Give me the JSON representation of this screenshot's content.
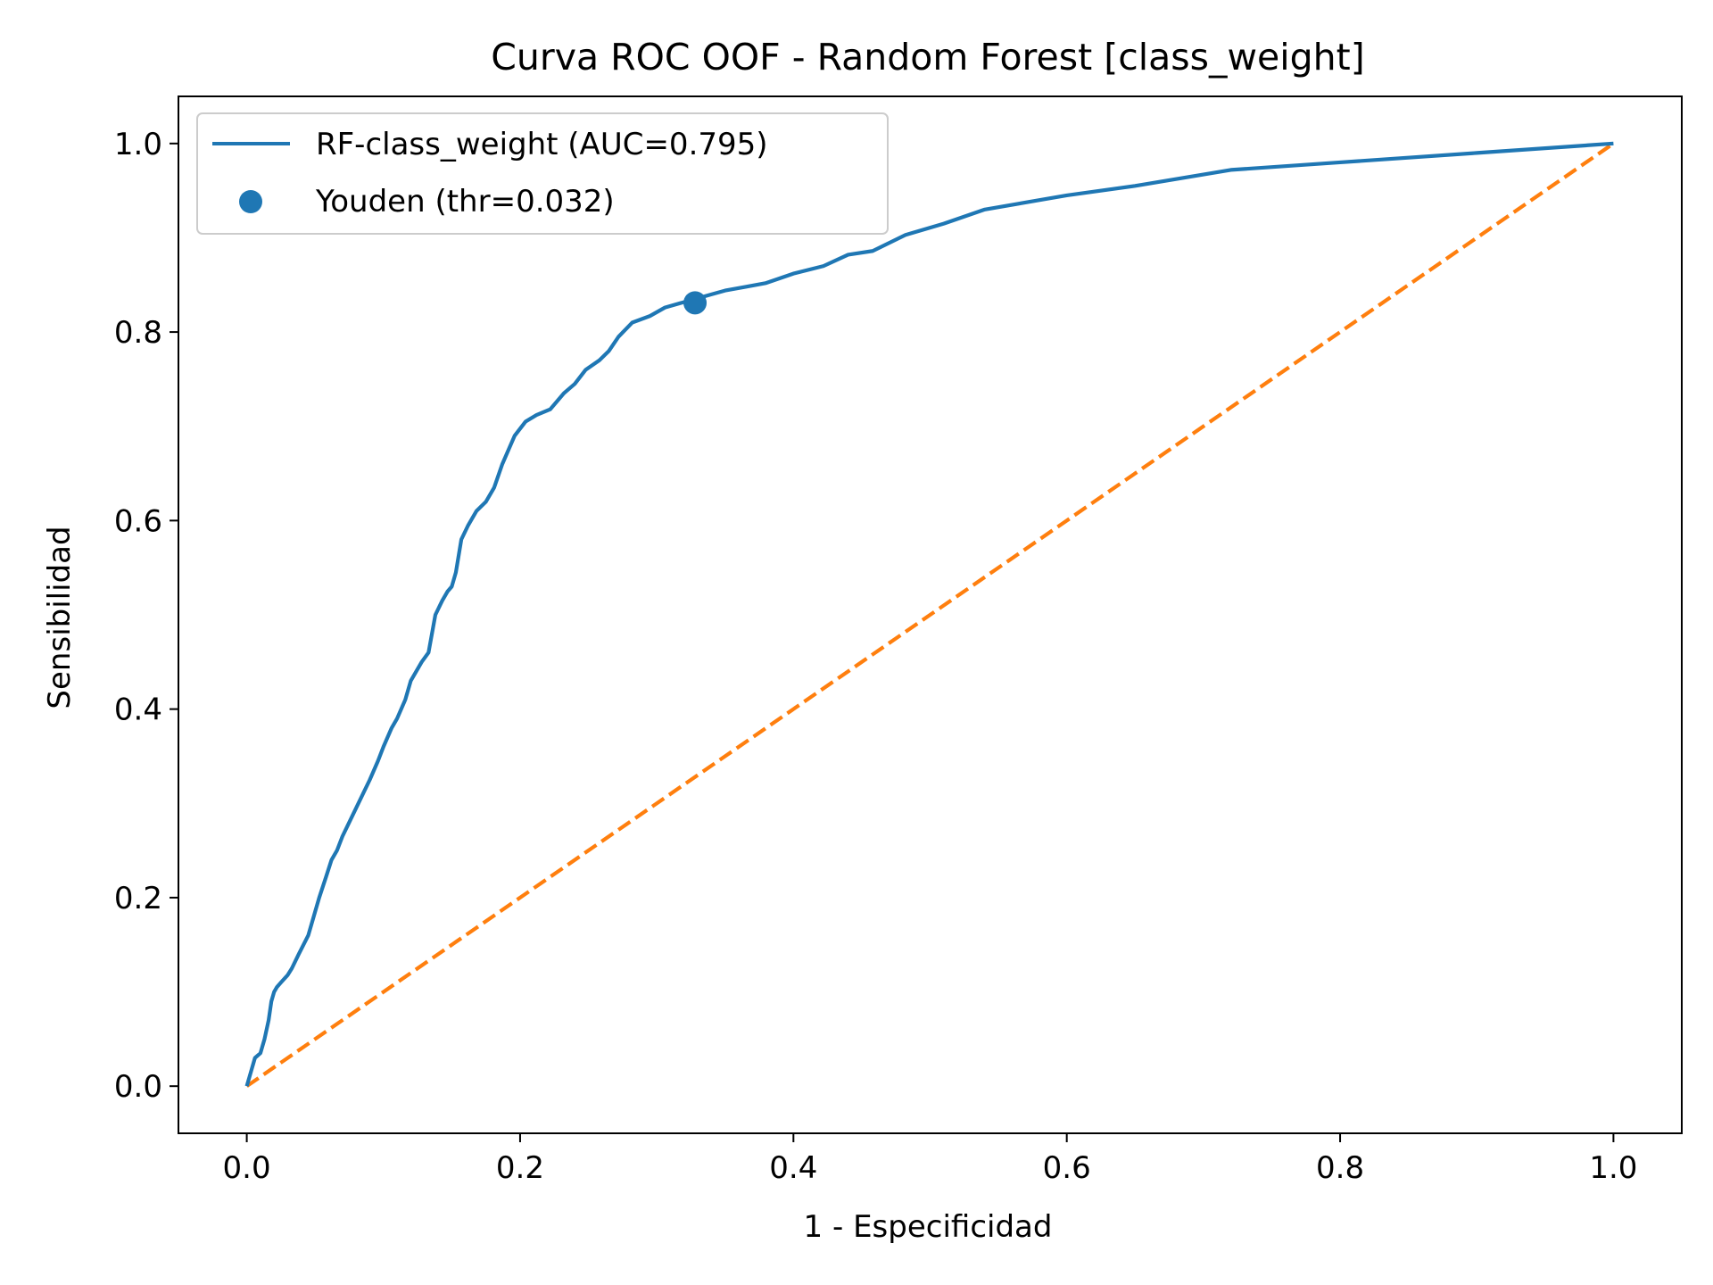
{
  "chart_data": {
    "type": "line",
    "title": "Curva ROC OOF - Random Forest [class_weight]",
    "xlabel": "1 - Especificidad",
    "ylabel": "Sensibilidad",
    "xlim": [
      -0.05,
      1.05
    ],
    "ylim": [
      -0.05,
      1.05
    ],
    "grid": false,
    "legend_position": "top-left",
    "x_ticks": [
      0.0,
      0.2,
      0.4,
      0.6,
      0.8,
      1.0
    ],
    "x_tick_labels": [
      "0.0",
      "0.2",
      "0.4",
      "0.6",
      "0.8",
      "1.0"
    ],
    "y_ticks": [
      0.0,
      0.2,
      0.4,
      0.6,
      0.8,
      1.0
    ],
    "y_tick_labels": [
      "0.0",
      "0.2",
      "0.4",
      "0.6",
      "0.8",
      "1.0"
    ],
    "series": [
      {
        "name": "RF-class_weight (AUC=0.795)",
        "kind": "line",
        "color": "#1f77b4",
        "x": [
          0.0,
          0.004,
          0.006,
          0.01,
          0.013,
          0.016,
          0.018,
          0.02,
          0.022,
          0.025,
          0.03,
          0.033,
          0.038,
          0.045,
          0.05,
          0.053,
          0.058,
          0.062,
          0.066,
          0.07,
          0.075,
          0.08,
          0.085,
          0.09,
          0.096,
          0.1,
          0.106,
          0.11,
          0.116,
          0.12,
          0.128,
          0.133,
          0.138,
          0.143,
          0.147,
          0.15,
          0.153,
          0.157,
          0.162,
          0.168,
          0.175,
          0.181,
          0.187,
          0.196,
          0.204,
          0.212,
          0.222,
          0.232,
          0.24,
          0.248,
          0.258,
          0.265,
          0.272,
          0.282,
          0.295,
          0.306,
          0.318,
          0.328,
          0.34,
          0.35,
          0.365,
          0.38,
          0.39,
          0.4,
          0.422,
          0.44,
          0.458,
          0.482,
          0.51,
          0.54,
          0.6,
          0.65,
          0.72,
          0.8,
          0.9,
          1.0
        ],
        "y": [
          0.0,
          0.02,
          0.03,
          0.035,
          0.05,
          0.07,
          0.09,
          0.1,
          0.105,
          0.11,
          0.118,
          0.125,
          0.14,
          0.16,
          0.185,
          0.2,
          0.222,
          0.24,
          0.25,
          0.265,
          0.28,
          0.295,
          0.31,
          0.325,
          0.345,
          0.36,
          0.38,
          0.39,
          0.41,
          0.43,
          0.45,
          0.46,
          0.5,
          0.515,
          0.525,
          0.53,
          0.545,
          0.58,
          0.595,
          0.61,
          0.62,
          0.635,
          0.66,
          0.69,
          0.705,
          0.712,
          0.718,
          0.735,
          0.745,
          0.76,
          0.77,
          0.78,
          0.795,
          0.81,
          0.817,
          0.826,
          0.831,
          0.835,
          0.84,
          0.844,
          0.848,
          0.852,
          0.857,
          0.862,
          0.87,
          0.882,
          0.886,
          0.903,
          0.915,
          0.93,
          0.945,
          0.955,
          0.972,
          0.98,
          0.99,
          1.0
        ]
      },
      {
        "name": "Youden (thr=0.032)",
        "kind": "point",
        "color": "#1f77b4",
        "x": [
          0.328
        ],
        "y": [
          0.831
        ]
      },
      {
        "kind": "dashed-line",
        "color": "#ff7f0e",
        "x": [
          0.0,
          1.0
        ],
        "y": [
          0.0,
          1.0
        ]
      }
    ]
  }
}
